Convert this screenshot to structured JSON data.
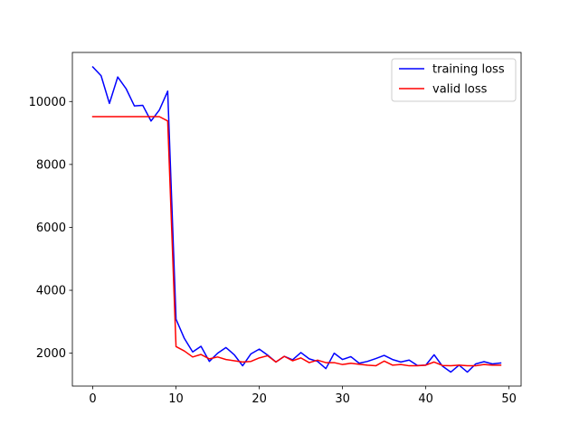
{
  "chart_data": {
    "type": "line",
    "title": "",
    "xlabel": "",
    "ylabel": "",
    "xlim": [
      -2.45,
      51.45
    ],
    "ylim": [
      955,
      11560
    ],
    "xticks": [
      0,
      10,
      20,
      30,
      40,
      50
    ],
    "yticks": [
      2000,
      4000,
      6000,
      8000,
      10000
    ],
    "grid": false,
    "legend_position": "top-right",
    "x": [
      0,
      1,
      2,
      3,
      4,
      5,
      6,
      7,
      8,
      9,
      10,
      11,
      12,
      13,
      14,
      15,
      16,
      17,
      18,
      19,
      20,
      21,
      22,
      23,
      24,
      25,
      26,
      27,
      28,
      29,
      30,
      31,
      32,
      33,
      34,
      35,
      36,
      37,
      38,
      39,
      40,
      41,
      42,
      43,
      44,
      45,
      46,
      47,
      48,
      49
    ],
    "series": [
      {
        "name": "training loss",
        "color": "#0000ff",
        "values": [
          11100,
          10820,
          9940,
          10780,
          10410,
          9860,
          9880,
          9380,
          9730,
          10330,
          3080,
          2470,
          2040,
          2220,
          1740,
          2000,
          2180,
          1950,
          1600,
          1980,
          2130,
          1940,
          1720,
          1900,
          1790,
          2020,
          1820,
          1740,
          1510,
          2000,
          1800,
          1890,
          1680,
          1740,
          1830,
          1930,
          1800,
          1720,
          1780,
          1610,
          1620,
          1950,
          1590,
          1400,
          1620,
          1400,
          1660,
          1730,
          1660,
          1690
        ]
      },
      {
        "name": "valid loss",
        "color": "#ff0000",
        "values": [
          9520,
          9520,
          9520,
          9520,
          9520,
          9520,
          9520,
          9520,
          9520,
          9380,
          2210,
          2070,
          1880,
          1960,
          1820,
          1880,
          1800,
          1760,
          1720,
          1740,
          1850,
          1920,
          1720,
          1900,
          1760,
          1850,
          1700,
          1780,
          1700,
          1700,
          1640,
          1680,
          1650,
          1620,
          1600,
          1750,
          1620,
          1640,
          1600,
          1600,
          1620,
          1720,
          1610,
          1600,
          1620,
          1600,
          1600,
          1640,
          1620,
          1620
        ]
      }
    ]
  }
}
